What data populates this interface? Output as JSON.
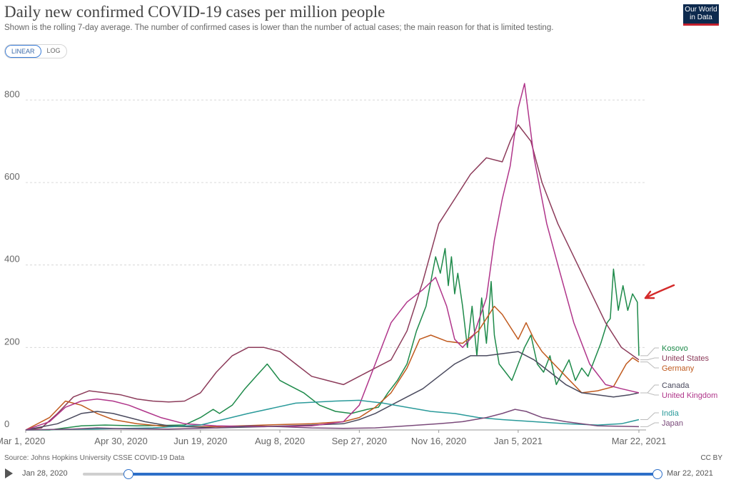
{
  "header": {
    "title": "Daily new confirmed COVID-19 cases per million people",
    "subtitle": "Shown is the rolling 7-day average. The number of confirmed cases is lower than the number of actual cases; the main reason for that is limited testing.",
    "logo_line1": "Our World",
    "logo_line2": "in Data"
  },
  "toggle": {
    "linear": "LINEAR",
    "log": "LOG",
    "selected": "LINEAR"
  },
  "footer": {
    "source": "Source: Johns Hopkins University CSSE COVID-19 Data",
    "license": "CC BY"
  },
  "timeline": {
    "start_label": "Jan 28, 2020",
    "end_label": "Mar 22, 2021",
    "start_fraction": 0.13,
    "end_fraction": 1.0
  },
  "chart_data": {
    "type": "line",
    "title": "Daily new confirmed COVID-19 cases per million people",
    "ylim": [
      0,
      880
    ],
    "yticks": [
      0,
      200,
      400,
      600,
      800
    ],
    "x_range": [
      0,
      386
    ],
    "xticks": [
      {
        "day": 0,
        "label": "Mar 1, 2020"
      },
      {
        "day": 60,
        "label": "Apr 30, 2020"
      },
      {
        "day": 110,
        "label": "Jun 19, 2020"
      },
      {
        "day": 160,
        "label": "Aug 8, 2020"
      },
      {
        "day": 210,
        "label": "Sep 27, 2020"
      },
      {
        "day": 260,
        "label": "Nov 16, 2020"
      },
      {
        "day": 310,
        "label": "Jan 5, 2021"
      },
      {
        "day": 386,
        "label": "Mar 22, 2021"
      }
    ],
    "grid": true,
    "legend": "right, labels at line ends",
    "annotation": "red arrow pointing at Kosovo series",
    "series": [
      {
        "name": "Kosovo",
        "color": "#1e8a4a",
        "points": [
          [
            0,
            0
          ],
          [
            15,
            0
          ],
          [
            25,
            5
          ],
          [
            35,
            10
          ],
          [
            50,
            12
          ],
          [
            70,
            10
          ],
          [
            100,
            12
          ],
          [
            110,
            30
          ],
          [
            118,
            50
          ],
          [
            122,
            40
          ],
          [
            130,
            60
          ],
          [
            138,
            100
          ],
          [
            145,
            130
          ],
          [
            152,
            160
          ],
          [
            156,
            140
          ],
          [
            160,
            120
          ],
          [
            165,
            110
          ],
          [
            175,
            90
          ],
          [
            185,
            60
          ],
          [
            195,
            45
          ],
          [
            205,
            40
          ],
          [
            215,
            50
          ],
          [
            222,
            55
          ],
          [
            228,
            90
          ],
          [
            234,
            120
          ],
          [
            240,
            160
          ],
          [
            246,
            240
          ],
          [
            252,
            300
          ],
          [
            255,
            360
          ],
          [
            258,
            420
          ],
          [
            261,
            380
          ],
          [
            264,
            440
          ],
          [
            266,
            350
          ],
          [
            268,
            420
          ],
          [
            270,
            330
          ],
          [
            272,
            380
          ],
          [
            275,
            300
          ],
          [
            278,
            200
          ],
          [
            281,
            300
          ],
          [
            284,
            180
          ],
          [
            287,
            320
          ],
          [
            290,
            210
          ],
          [
            293,
            360
          ],
          [
            295,
            230
          ],
          [
            298,
            160
          ],
          [
            302,
            140
          ],
          [
            306,
            120
          ],
          [
            310,
            160
          ],
          [
            314,
            200
          ],
          [
            318,
            230
          ],
          [
            322,
            160
          ],
          [
            326,
            140
          ],
          [
            330,
            180
          ],
          [
            334,
            110
          ],
          [
            338,
            140
          ],
          [
            342,
            170
          ],
          [
            346,
            120
          ],
          [
            350,
            150
          ],
          [
            354,
            130
          ],
          [
            358,
            170
          ],
          [
            362,
            210
          ],
          [
            366,
            260
          ],
          [
            368,
            270
          ],
          [
            370,
            390
          ],
          [
            373,
            290
          ],
          [
            376,
            350
          ],
          [
            379,
            290
          ],
          [
            382,
            330
          ],
          [
            385,
            310
          ],
          [
            386,
            180
          ]
        ]
      },
      {
        "name": "United States",
        "color": "#8c3b5a",
        "points": [
          [
            0,
            0
          ],
          [
            10,
            5
          ],
          [
            20,
            40
          ],
          [
            30,
            80
          ],
          [
            40,
            95
          ],
          [
            50,
            90
          ],
          [
            60,
            85
          ],
          [
            70,
            75
          ],
          [
            80,
            70
          ],
          [
            90,
            68
          ],
          [
            100,
            70
          ],
          [
            110,
            90
          ],
          [
            120,
            140
          ],
          [
            130,
            180
          ],
          [
            140,
            200
          ],
          [
            150,
            200
          ],
          [
            160,
            190
          ],
          [
            170,
            160
          ],
          [
            180,
            130
          ],
          [
            190,
            120
          ],
          [
            200,
            110
          ],
          [
            210,
            130
          ],
          [
            220,
            150
          ],
          [
            230,
            170
          ],
          [
            240,
            240
          ],
          [
            250,
            360
          ],
          [
            260,
            500
          ],
          [
            270,
            560
          ],
          [
            280,
            620
          ],
          [
            290,
            660
          ],
          [
            300,
            650
          ],
          [
            305,
            700
          ],
          [
            310,
            740
          ],
          [
            318,
            700
          ],
          [
            325,
            600
          ],
          [
            335,
            500
          ],
          [
            345,
            420
          ],
          [
            355,
            340
          ],
          [
            365,
            260
          ],
          [
            375,
            200
          ],
          [
            386,
            170
          ]
        ]
      },
      {
        "name": "Germany",
        "color": "#c05a1e",
        "points": [
          [
            0,
            0
          ],
          [
            15,
            30
          ],
          [
            25,
            70
          ],
          [
            35,
            60
          ],
          [
            45,
            40
          ],
          [
            55,
            25
          ],
          [
            70,
            15
          ],
          [
            90,
            8
          ],
          [
            120,
            8
          ],
          [
            150,
            12
          ],
          [
            180,
            15
          ],
          [
            200,
            20
          ],
          [
            210,
            30
          ],
          [
            220,
            55
          ],
          [
            230,
            90
          ],
          [
            240,
            150
          ],
          [
            248,
            220
          ],
          [
            255,
            230
          ],
          [
            265,
            215
          ],
          [
            275,
            210
          ],
          [
            285,
            240
          ],
          [
            295,
            300
          ],
          [
            300,
            280
          ],
          [
            305,
            250
          ],
          [
            310,
            220
          ],
          [
            315,
            260
          ],
          [
            320,
            220
          ],
          [
            325,
            190
          ],
          [
            330,
            170
          ],
          [
            340,
            130
          ],
          [
            350,
            90
          ],
          [
            360,
            95
          ],
          [
            370,
            105
          ],
          [
            378,
            160
          ],
          [
            382,
            175
          ],
          [
            386,
            165
          ]
        ]
      },
      {
        "name": "Canada",
        "color": "#4a4a5e",
        "points": [
          [
            0,
            0
          ],
          [
            20,
            15
          ],
          [
            35,
            40
          ],
          [
            45,
            45
          ],
          [
            55,
            40
          ],
          [
            65,
            30
          ],
          [
            75,
            20
          ],
          [
            90,
            10
          ],
          [
            120,
            5
          ],
          [
            150,
            8
          ],
          [
            180,
            12
          ],
          [
            200,
            15
          ],
          [
            210,
            25
          ],
          [
            220,
            40
          ],
          [
            230,
            60
          ],
          [
            240,
            80
          ],
          [
            250,
            100
          ],
          [
            260,
            130
          ],
          [
            270,
            160
          ],
          [
            280,
            180
          ],
          [
            290,
            180
          ],
          [
            300,
            185
          ],
          [
            310,
            190
          ],
          [
            320,
            170
          ],
          [
            330,
            140
          ],
          [
            340,
            110
          ],
          [
            350,
            90
          ],
          [
            360,
            85
          ],
          [
            370,
            80
          ],
          [
            380,
            85
          ],
          [
            386,
            90
          ]
        ]
      },
      {
        "name": "United Kingdom",
        "color": "#b0358a",
        "points": [
          [
            0,
            0
          ],
          [
            15,
            20
          ],
          [
            25,
            55
          ],
          [
            35,
            70
          ],
          [
            45,
            75
          ],
          [
            55,
            70
          ],
          [
            65,
            60
          ],
          [
            75,
            45
          ],
          [
            85,
            30
          ],
          [
            100,
            15
          ],
          [
            120,
            10
          ],
          [
            150,
            8
          ],
          [
            180,
            10
          ],
          [
            200,
            20
          ],
          [
            210,
            60
          ],
          [
            220,
            160
          ],
          [
            230,
            260
          ],
          [
            240,
            310
          ],
          [
            250,
            340
          ],
          [
            258,
            370
          ],
          [
            265,
            300
          ],
          [
            270,
            220
          ],
          [
            275,
            200
          ],
          [
            282,
            230
          ],
          [
            290,
            320
          ],
          [
            295,
            460
          ],
          [
            300,
            560
          ],
          [
            305,
            640
          ],
          [
            310,
            780
          ],
          [
            314,
            840
          ],
          [
            320,
            660
          ],
          [
            328,
            500
          ],
          [
            335,
            400
          ],
          [
            345,
            260
          ],
          [
            355,
            160
          ],
          [
            365,
            110
          ],
          [
            375,
            100
          ],
          [
            386,
            90
          ]
        ]
      },
      {
        "name": "India",
        "color": "#2a9a9a",
        "points": [
          [
            0,
            0
          ],
          [
            40,
            2
          ],
          [
            80,
            5
          ],
          [
            110,
            12
          ],
          [
            140,
            40
          ],
          [
            170,
            65
          ],
          [
            195,
            70
          ],
          [
            210,
            72
          ],
          [
            225,
            65
          ],
          [
            240,
            55
          ],
          [
            255,
            45
          ],
          [
            270,
            40
          ],
          [
            285,
            30
          ],
          [
            300,
            25
          ],
          [
            320,
            20
          ],
          [
            340,
            15
          ],
          [
            360,
            12
          ],
          [
            375,
            15
          ],
          [
            386,
            25
          ]
        ]
      },
      {
        "name": "Japan",
        "color": "#7a4a7a",
        "points": [
          [
            0,
            0
          ],
          [
            30,
            2
          ],
          [
            45,
            5
          ],
          [
            60,
            3
          ],
          [
            90,
            2
          ],
          [
            120,
            5
          ],
          [
            140,
            10
          ],
          [
            160,
            8
          ],
          [
            180,
            5
          ],
          [
            200,
            4
          ],
          [
            220,
            5
          ],
          [
            240,
            10
          ],
          [
            260,
            15
          ],
          [
            275,
            20
          ],
          [
            290,
            30
          ],
          [
            300,
            40
          ],
          [
            308,
            50
          ],
          [
            315,
            45
          ],
          [
            325,
            30
          ],
          [
            340,
            20
          ],
          [
            360,
            10
          ],
          [
            386,
            8
          ]
        ]
      }
    ],
    "end_labels": [
      "Kosovo",
      "United States",
      "Germany",
      "Canada",
      "United Kingdom",
      "India",
      "Japan"
    ]
  }
}
